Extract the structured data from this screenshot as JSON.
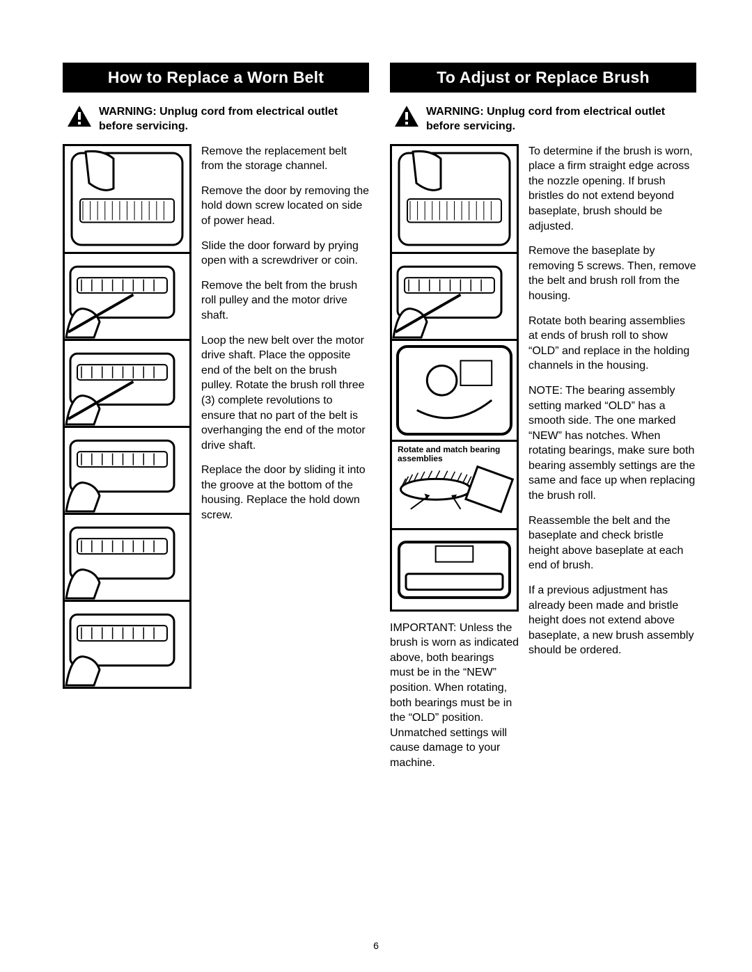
{
  "page_number": "6",
  "left": {
    "header": "How to Replace a Worn Belt",
    "warning": "WARNING: Unplug cord from electrical outlet before servicing.",
    "steps": [
      "Remove the replacement belt from the storage channel.",
      "Remove the door by removing the hold down screw located on side of power head.",
      "Slide the door forward by prying open with a screwdriver or coin.",
      "Remove the belt from the brush roll pulley and the motor drive shaft.",
      "Loop the new belt over the motor drive shaft. Place the opposite end of the belt on the brush pulley. Rotate the brush roll three (3) complete revolutions to ensure that no part of the belt is overhanging the end of the motor drive shaft.",
      "Replace the door by sliding it into the groove at the bottom of the housing. Replace the hold down screw."
    ],
    "illus_heights": [
      158,
      128,
      128,
      128,
      128,
      128
    ]
  },
  "right": {
    "header": "To Adjust or Replace Brush",
    "warning": "WARNING: Unplug cord from electrical outlet before servicing.",
    "steps": [
      "To determine if the brush is worn, place a firm straight edge across the nozzle opening. If brush bristles do not extend beyond baseplate, brush should be adjusted.",
      "Remove the baseplate by removing 5 screws. Then, remove the belt and brush roll from the housing.",
      "Rotate both bearing assemblies at ends of brush roll to show “OLD” and replace in the holding channels in the housing.",
      "NOTE: The bearing assembly setting marked “OLD” has a smooth side. The one marked “NEW” has notches. When rotating bearings, make sure both bearing assembly settings are the same and face up when replacing the brush roll.",
      "Reassemble the belt and the baseplate and check bristle height above baseplate at each end of brush.",
      "If a previous adjustment has already been made and bristle height does not extend above baseplate, a new brush assembly should be ordered."
    ],
    "important": "IMPORTANT: Unless the brush is worn as indicated above, both bearings must be in the “NEW” position. When rotating, both bearings must be in the “OLD” position. Unmatched settings will cause damage to your machine.",
    "illus_heights": [
      158,
      128,
      148,
      130,
      120
    ],
    "illus_caption_index": 3,
    "illus_caption": "Rotate and match bearing assemblies"
  }
}
